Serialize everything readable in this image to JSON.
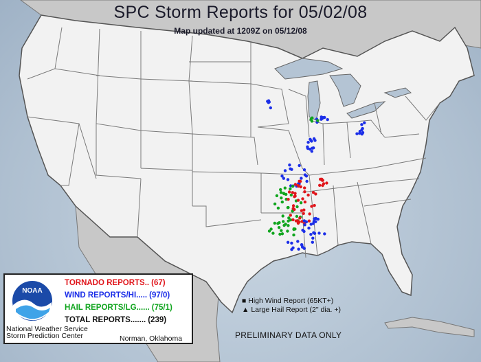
{
  "header": {
    "title": "SPC Storm Reports for 05/02/08",
    "subtitle": "Map updated at 1209Z on 05/12/08"
  },
  "legend": {
    "logo_text": "NOAA",
    "tornado": {
      "label": "TORNADO REPORTS..",
      "count": "(67)",
      "color": "#e0151b"
    },
    "wind": {
      "label": "WIND REPORTS/HI.....",
      "count": "(97/0)",
      "color": "#1b2ee8"
    },
    "hail": {
      "label": "HAIL REPORTS/LG......",
      "count": "(75/1)",
      "color": "#10a51e"
    },
    "total": {
      "label": "TOTAL REPORTS.......",
      "count": "(239)",
      "color": "#111111"
    },
    "org_line1": "National Weather Service",
    "org_line2": "Storm Prediction Center",
    "location": "Norman, Oklahoma"
  },
  "key": {
    "high_wind": "High Wind Report (65KT+)",
    "large_hail": "Large Hail Report (2\" dia. +)"
  },
  "footer": {
    "preliminary": "PRELIMINARY DATA ONLY"
  },
  "colors": {
    "land": "#f2f2f2",
    "border": "#6e6e6e",
    "water": "#b4c4d4",
    "foreign": "#cbcbcb"
  }
}
